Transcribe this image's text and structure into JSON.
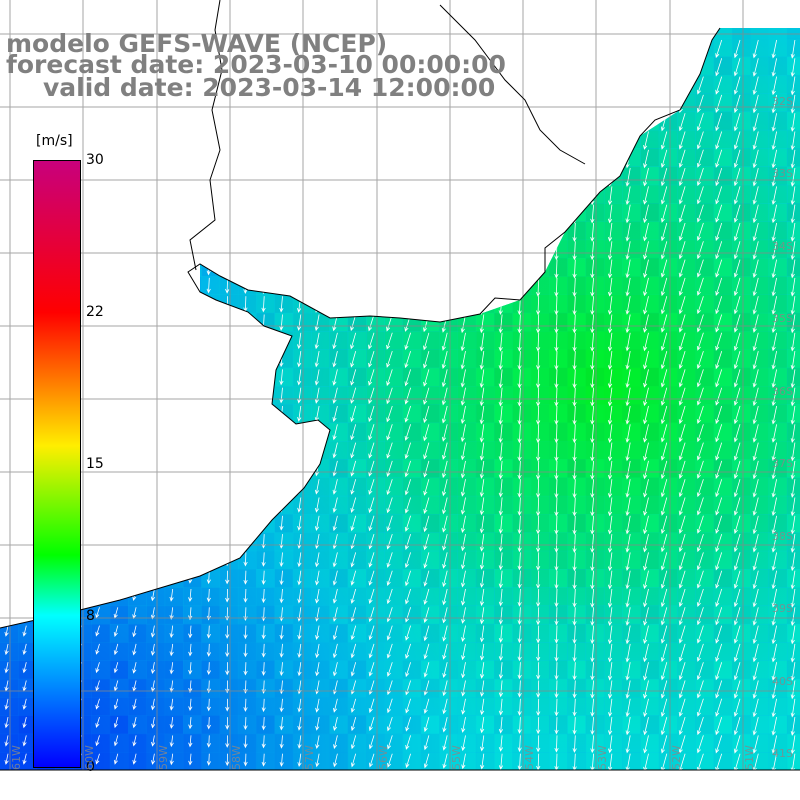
{
  "title": {
    "line1": "modelo GEFS-WAVE (NCEP)",
    "line2": "forecast date: 2023-03-10 00:00:00",
    "line3": "valid date: 2023-03-14 12:00:00"
  },
  "colorbar": {
    "unit": "[m/s]",
    "ticks": [
      "30",
      "22",
      "15",
      "8",
      "0"
    ],
    "colors": [
      "#c8007c",
      "#ff0000",
      "#ffee00",
      "#00ff00",
      "#00ffff",
      "#0000ff"
    ]
  },
  "latitude_labels": [
    "32S",
    "33S",
    "34S",
    "35S",
    "36S",
    "37S",
    "38S",
    "39S",
    "40S",
    "41S"
  ],
  "longitude_labels": [
    "61W",
    "60W",
    "59W",
    "58W",
    "57W",
    "56W",
    "55W",
    "54W",
    "53W",
    "52W",
    "51W"
  ],
  "map": {
    "field": "wind speed",
    "wind_direction": "from north-northeast (arrows pointing south-southwest)",
    "land_color": "#ffffff",
    "grid_color": "#888888",
    "coastline_color": "#000000",
    "vector_color": "#ffffff"
  }
}
